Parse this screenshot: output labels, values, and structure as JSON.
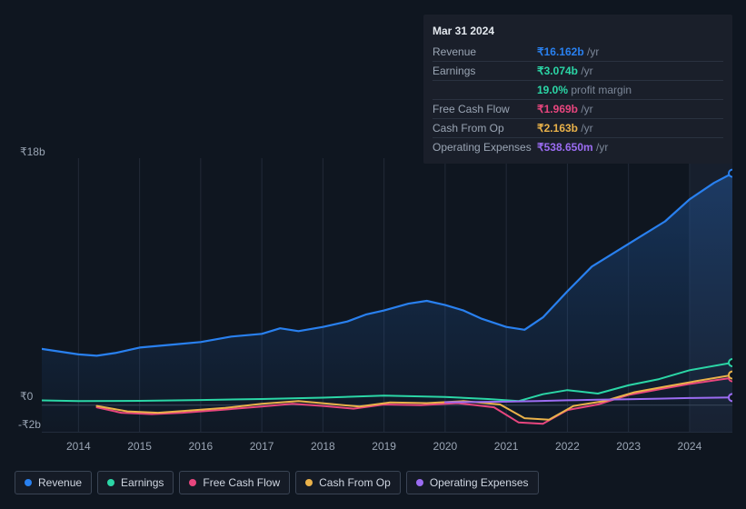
{
  "tooltip": {
    "date": "Mar 31 2024",
    "rows": [
      {
        "label": "Revenue",
        "value": "₹16.162b",
        "unit": "/yr",
        "color": "#2980ef"
      },
      {
        "label": "Earnings",
        "value": "₹3.074b",
        "unit": "/yr",
        "color": "#2bd6a6"
      },
      {
        "label": "",
        "value": "19.0%",
        "unit": "profit margin",
        "color": "#2bd6a6"
      },
      {
        "label": "Free Cash Flow",
        "value": "₹1.969b",
        "unit": "/yr",
        "color": "#e8467e"
      },
      {
        "label": "Cash From Op",
        "value": "₹2.163b",
        "unit": "/yr",
        "color": "#eab24a"
      },
      {
        "label": "Operating Expenses",
        "value": "₹538.650m",
        "unit": "/yr",
        "color": "#9b6cf2"
      }
    ]
  },
  "chart": {
    "type": "line",
    "background_color": "#0f1620",
    "grid_color": "#222a38",
    "x_years": [
      2014,
      2015,
      2016,
      2017,
      2018,
      2019,
      2020,
      2021,
      2022,
      2023,
      2024
    ],
    "x_range": [
      2013.4,
      2024.7
    ],
    "y_range_b": [
      -2,
      18
    ],
    "y_ticks": [
      {
        "v": 18,
        "label": "₹18b"
      },
      {
        "v": 0,
        "label": "₹0"
      },
      {
        "v": -2,
        "label": "-₹2b"
      }
    ],
    "zero_line_color": "#3a4454",
    "series": [
      {
        "name": "Revenue",
        "color": "#2980ef",
        "width": 2.2,
        "area": true,
        "area_opacity": 0.18,
        "end_marker": true,
        "points": [
          [
            2013.4,
            4.1
          ],
          [
            2013.7,
            3.9
          ],
          [
            2014.0,
            3.7
          ],
          [
            2014.3,
            3.6
          ],
          [
            2014.6,
            3.8
          ],
          [
            2015.0,
            4.2
          ],
          [
            2015.5,
            4.4
          ],
          [
            2016.0,
            4.6
          ],
          [
            2016.5,
            5.0
          ],
          [
            2017.0,
            5.2
          ],
          [
            2017.3,
            5.6
          ],
          [
            2017.6,
            5.4
          ],
          [
            2018.0,
            5.7
          ],
          [
            2018.4,
            6.1
          ],
          [
            2018.7,
            6.6
          ],
          [
            2019.0,
            6.9
          ],
          [
            2019.4,
            7.4
          ],
          [
            2019.7,
            7.6
          ],
          [
            2020.0,
            7.3
          ],
          [
            2020.3,
            6.9
          ],
          [
            2020.6,
            6.3
          ],
          [
            2021.0,
            5.7
          ],
          [
            2021.3,
            5.5
          ],
          [
            2021.6,
            6.4
          ],
          [
            2022.0,
            8.3
          ],
          [
            2022.4,
            10.1
          ],
          [
            2022.8,
            11.2
          ],
          [
            2023.2,
            12.3
          ],
          [
            2023.6,
            13.4
          ],
          [
            2024.0,
            15.0
          ],
          [
            2024.4,
            16.2
          ],
          [
            2024.7,
            16.9
          ]
        ]
      },
      {
        "name": "Earnings",
        "color": "#2bd6a6",
        "width": 2.0,
        "area": false,
        "end_marker": true,
        "points": [
          [
            2013.4,
            0.35
          ],
          [
            2014.0,
            0.3
          ],
          [
            2015.0,
            0.32
          ],
          [
            2016.0,
            0.38
          ],
          [
            2017.0,
            0.45
          ],
          [
            2018.0,
            0.55
          ],
          [
            2019.0,
            0.7
          ],
          [
            2020.0,
            0.6
          ],
          [
            2020.7,
            0.45
          ],
          [
            2021.2,
            0.3
          ],
          [
            2021.6,
            0.8
          ],
          [
            2022.0,
            1.1
          ],
          [
            2022.5,
            0.85
          ],
          [
            2023.0,
            1.45
          ],
          [
            2023.5,
            1.9
          ],
          [
            2024.0,
            2.55
          ],
          [
            2024.7,
            3.1
          ]
        ]
      },
      {
        "name": "Free Cash Flow",
        "color": "#e8467e",
        "width": 2.0,
        "area": false,
        "end_marker": true,
        "points": [
          [
            2014.3,
            -0.15
          ],
          [
            2014.7,
            -0.55
          ],
          [
            2015.2,
            -0.65
          ],
          [
            2015.7,
            -0.55
          ],
          [
            2016.3,
            -0.35
          ],
          [
            2017.0,
            -0.1
          ],
          [
            2017.5,
            0.1
          ],
          [
            2018.0,
            -0.05
          ],
          [
            2018.5,
            -0.25
          ],
          [
            2019.0,
            0.05
          ],
          [
            2019.6,
            0.0
          ],
          [
            2020.2,
            0.15
          ],
          [
            2020.8,
            -0.15
          ],
          [
            2021.2,
            -1.25
          ],
          [
            2021.6,
            -1.35
          ],
          [
            2022.0,
            -0.35
          ],
          [
            2022.5,
            0.05
          ],
          [
            2023.0,
            0.75
          ],
          [
            2023.5,
            1.15
          ],
          [
            2024.0,
            1.55
          ],
          [
            2024.7,
            2.0
          ]
        ]
      },
      {
        "name": "Cash From Op",
        "color": "#eab24a",
        "width": 2.0,
        "area": false,
        "end_marker": true,
        "points": [
          [
            2014.3,
            -0.05
          ],
          [
            2014.8,
            -0.45
          ],
          [
            2015.3,
            -0.55
          ],
          [
            2015.8,
            -0.4
          ],
          [
            2016.4,
            -0.2
          ],
          [
            2017.0,
            0.1
          ],
          [
            2017.6,
            0.3
          ],
          [
            2018.1,
            0.1
          ],
          [
            2018.6,
            -0.1
          ],
          [
            2019.1,
            0.2
          ],
          [
            2019.7,
            0.15
          ],
          [
            2020.3,
            0.3
          ],
          [
            2020.9,
            0.05
          ],
          [
            2021.3,
            -0.95
          ],
          [
            2021.7,
            -1.05
          ],
          [
            2022.1,
            -0.05
          ],
          [
            2022.6,
            0.3
          ],
          [
            2023.1,
            0.95
          ],
          [
            2023.6,
            1.35
          ],
          [
            2024.1,
            1.75
          ],
          [
            2024.7,
            2.2
          ]
        ]
      },
      {
        "name": "Operating Expenses",
        "color": "#9b6cf2",
        "width": 2.0,
        "area": false,
        "end_marker": true,
        "points": [
          [
            2020.0,
            0.22
          ],
          [
            2020.5,
            0.24
          ],
          [
            2021.0,
            0.26
          ],
          [
            2021.5,
            0.3
          ],
          [
            2022.0,
            0.36
          ],
          [
            2022.5,
            0.4
          ],
          [
            2023.0,
            0.44
          ],
          [
            2023.5,
            0.48
          ],
          [
            2024.0,
            0.52
          ],
          [
            2024.7,
            0.56
          ]
        ]
      }
    ],
    "legend": [
      {
        "label": "Revenue",
        "color": "#2980ef"
      },
      {
        "label": "Earnings",
        "color": "#2bd6a6"
      },
      {
        "label": "Free Cash Flow",
        "color": "#e8467e"
      },
      {
        "label": "Cash From Op",
        "color": "#eab24a"
      },
      {
        "label": "Operating Expenses",
        "color": "#9b6cf2"
      }
    ]
  }
}
